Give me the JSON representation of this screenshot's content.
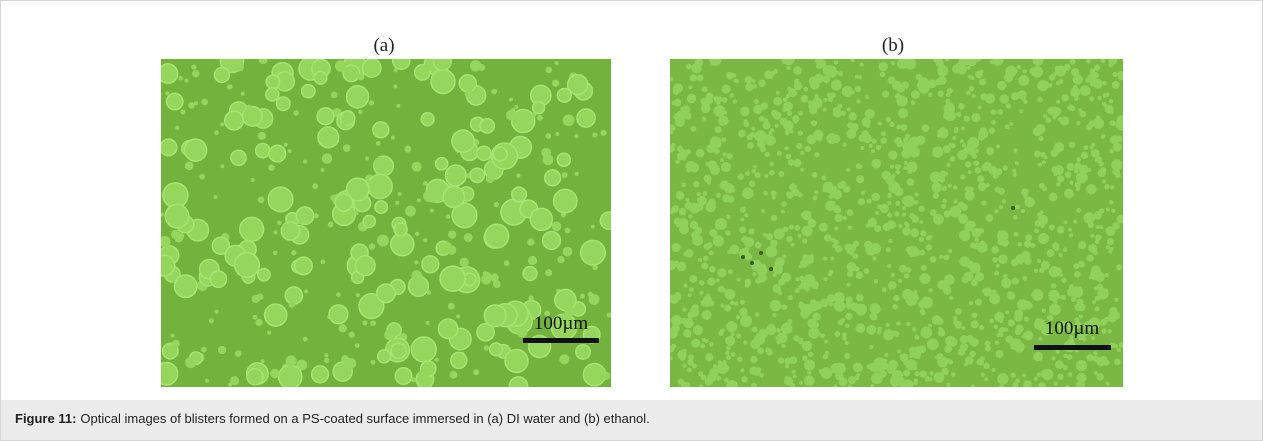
{
  "figure": {
    "panels": [
      {
        "label": "(a)",
        "scale_bar": "100µm"
      },
      {
        "label": "(b)",
        "scale_bar": "100µm"
      }
    ],
    "caption": {
      "label": "Figure 11:",
      "text": "Optical images of blisters formed on a PS-coated surface immersed in (a) DI water and (b) ethanol."
    }
  }
}
